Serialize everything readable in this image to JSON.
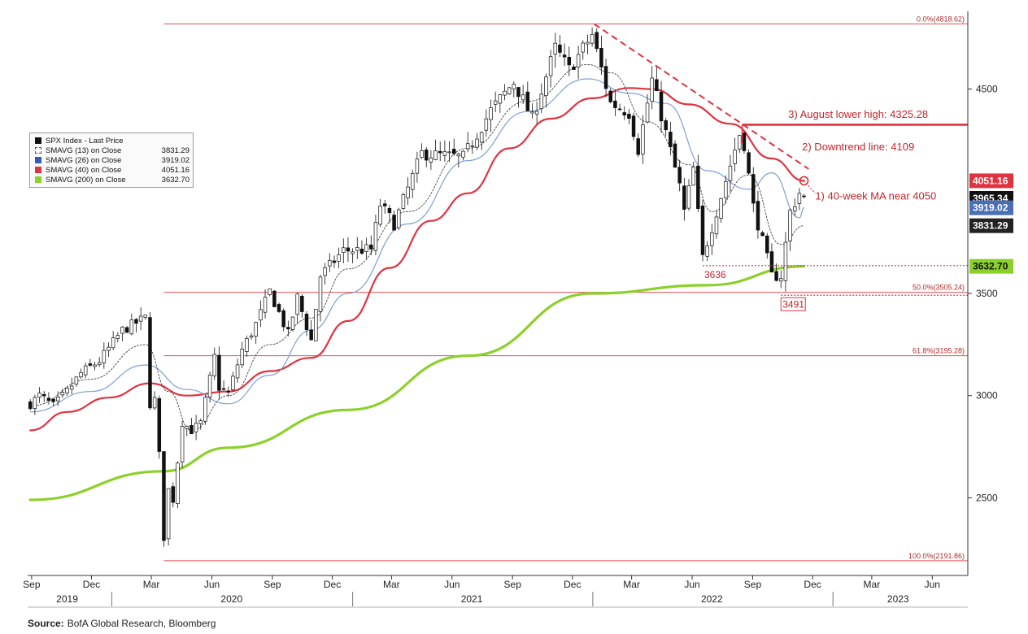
{
  "chart_data": {
    "type": "candlestick_line",
    "y_scale": "linear",
    "ylim": [
      2120,
      4880
    ],
    "y_ticks": [
      2500,
      3000,
      3500,
      4500
    ],
    "x_range": [
      "2019-08-26",
      "2023-07-25"
    ],
    "x_month_ticks": [
      {
        "label": "Sep",
        "date": "2019-09-01"
      },
      {
        "label": "Dec",
        "date": "2019-12-01"
      },
      {
        "label": "Mar",
        "date": "2020-03-01"
      },
      {
        "label": "Jun",
        "date": "2020-06-01"
      },
      {
        "label": "Sep",
        "date": "2020-09-01"
      },
      {
        "label": "Dec",
        "date": "2020-12-01"
      },
      {
        "label": "Mar",
        "date": "2021-03-01"
      },
      {
        "label": "Jun",
        "date": "2021-06-01"
      },
      {
        "label": "Sep",
        "date": "2021-09-01"
      },
      {
        "label": "Dec",
        "date": "2021-12-01"
      },
      {
        "label": "Mar",
        "date": "2022-03-01"
      },
      {
        "label": "Jun",
        "date": "2022-06-01"
      },
      {
        "label": "Sep",
        "date": "2022-09-01"
      },
      {
        "label": "Dec",
        "date": "2022-12-01"
      },
      {
        "label": "Mar",
        "date": "2023-03-01"
      },
      {
        "label": "Jun",
        "date": "2023-06-01"
      }
    ],
    "x_year_labels": [
      {
        "label": "2019",
        "date": "2019-10-25"
      },
      {
        "label": "2020",
        "date": "2020-07-01"
      },
      {
        "label": "2021",
        "date": "2021-07-01"
      },
      {
        "label": "2022",
        "date": "2022-07-01"
      },
      {
        "label": "2023",
        "date": "2023-04-10"
      }
    ],
    "year_dividers": [
      "2020-01-01",
      "2021-01-01",
      "2022-01-01",
      "2023-01-01"
    ],
    "legend": [
      {
        "label": "SPX Index - Last Price",
        "value": "",
        "color": "#111111",
        "style": "solid"
      },
      {
        "label": "SMAVG (13) on Close",
        "value": "3831.29",
        "color": "#ffffff",
        "style": "dashed"
      },
      {
        "label": "SMAVG (26) on Close",
        "value": "3919.02",
        "color": "#2f5db3",
        "style": "solid"
      },
      {
        "label": "SMAVG (40) on Close",
        "value": "4051.16",
        "color": "#e03340",
        "style": "solid"
      },
      {
        "label": "SMAVG (200) on Close",
        "value": "3632.70",
        "color": "#8cd02a",
        "style": "solid"
      }
    ],
    "last_value_boxes": [
      {
        "value": "4051.16",
        "y": 4051.16,
        "bg": "#e03340",
        "fg": "#ffffff"
      },
      {
        "value": "3965.34",
        "y": 3965.34,
        "bg": "#111111",
        "fg": "#ffffff"
      },
      {
        "value": "3919.02",
        "y": 3919.02,
        "bg": "#4a6fb5",
        "fg": "#ffffff"
      },
      {
        "value": "3831.29",
        "y": 3831.29,
        "bg": "#222222",
        "fg": "#ffffff"
      },
      {
        "value": "3632.70",
        "y": 3632.7,
        "bg": "#8cd02a",
        "fg": "#111111"
      }
    ],
    "fib_levels": [
      {
        "label": "0.0%(4818.62)",
        "y": 4818.62,
        "from": "2020-03-20"
      },
      {
        "label": "50.0%(3505.24)",
        "y": 3505.24,
        "from": "2020-03-20"
      },
      {
        "label": "61.8%(3195.28)",
        "y": 3195.28,
        "from": "2020-03-20"
      },
      {
        "label": "100.0%(2191.86)",
        "y": 2191.86,
        "from": "2020-03-20"
      }
    ],
    "annotations": [
      {
        "text": "3) August lower high: 4325.28",
        "date": "2022-10-25",
        "y": 4360
      },
      {
        "text": "2) Downtrend line: 4109",
        "date": "2022-11-15",
        "y": 4200
      },
      {
        "text": "1) 40-week MA near 4050",
        "date": "2022-12-05",
        "y": 3960
      }
    ],
    "lows": [
      {
        "label": "3636",
        "y": 3636,
        "date": "2022-06-17"
      },
      {
        "label": "3491",
        "y": 3491,
        "date": "2022-10-14"
      }
    ],
    "downtrend_line": [
      [
        "2022-01-03",
        4818.62
      ],
      [
        "2022-11-25",
        4109
      ]
    ],
    "august_high_line": [
      [
        "2022-08-16",
        4325.28
      ],
      [
        "2023-07-25",
        4325.28
      ]
    ],
    "support_line_3636": [
      [
        "2022-06-17",
        3636
      ],
      [
        "2023-07-25",
        3636
      ]
    ],
    "support_line_3491": [
      [
        "2022-10-14",
        3491
      ],
      [
        "2023-07-25",
        3491
      ]
    ],
    "price_anchors": [
      [
        "2019-08-30",
        2960
      ],
      [
        "2019-09-13",
        3000
      ],
      [
        "2019-10-04",
        2950
      ],
      [
        "2019-10-25",
        3020
      ],
      [
        "2019-11-15",
        3110
      ],
      [
        "2019-12-13",
        3170
      ],
      [
        "2020-01-17",
        3320
      ],
      [
        "2020-02-21",
        3380
      ],
      [
        "2020-02-28",
        2960
      ],
      [
        "2020-03-06",
        2980
      ],
      [
        "2020-03-13",
        2710
      ],
      [
        "2020-03-20",
        2305
      ],
      [
        "2020-03-27",
        2540
      ],
      [
        "2020-04-03",
        2490
      ],
      [
        "2020-04-17",
        2870
      ],
      [
        "2020-05-01",
        2830
      ],
      [
        "2020-05-15",
        2865
      ],
      [
        "2020-06-05",
        3190
      ],
      [
        "2020-06-12",
        3040
      ],
      [
        "2020-06-26",
        3010
      ],
      [
        "2020-07-17",
        3225
      ],
      [
        "2020-08-07",
        3350
      ],
      [
        "2020-08-28",
        3510
      ],
      [
        "2020-09-25",
        3300
      ],
      [
        "2020-10-09",
        3480
      ],
      [
        "2020-10-30",
        3270
      ],
      [
        "2020-11-13",
        3585
      ],
      [
        "2020-12-18",
        3710
      ],
      [
        "2021-01-29",
        3715
      ],
      [
        "2021-02-12",
        3935
      ],
      [
        "2021-03-05",
        3840
      ],
      [
        "2021-04-16",
        4185
      ],
      [
        "2021-05-14",
        4175
      ],
      [
        "2021-06-18",
        4165
      ],
      [
        "2021-07-30",
        4395
      ],
      [
        "2021-09-03",
        4535
      ],
      [
        "2021-10-01",
        4355
      ],
      [
        "2021-11-05",
        4700
      ],
      [
        "2021-11-26",
        4595
      ],
      [
        "2021-12-31",
        4766
      ],
      [
        "2022-01-28",
        4432
      ],
      [
        "2022-02-25",
        4385
      ],
      [
        "2022-03-11",
        4205
      ],
      [
        "2022-04-01",
        4545
      ],
      [
        "2022-05-13",
        4025
      ],
      [
        "2022-05-20",
        3900
      ],
      [
        "2022-06-03",
        4110
      ],
      [
        "2022-06-17",
        3675
      ],
      [
        "2022-07-08",
        3900
      ],
      [
        "2022-08-12",
        4280
      ],
      [
        "2022-08-19",
        4230
      ],
      [
        "2022-09-02",
        3925
      ],
      [
        "2022-09-30",
        3585
      ],
      [
        "2022-10-14",
        3585
      ],
      [
        "2022-10-28",
        3900
      ],
      [
        "2022-11-11",
        3992
      ],
      [
        "2022-11-18",
        3965.34
      ]
    ],
    "sma200_anchors": [
      [
        "2019-08-30",
        2490
      ],
      [
        "2020-03-20",
        2630
      ],
      [
        "2020-06-26",
        2745
      ],
      [
        "2020-12-25",
        2930
      ],
      [
        "2021-06-25",
        3195
      ],
      [
        "2021-12-31",
        3500
      ],
      [
        "2022-06-24",
        3540
      ],
      [
        "2022-11-18",
        3632.7
      ]
    ],
    "sma40_anchors": [
      [
        "2019-08-30",
        2830
      ],
      [
        "2019-10-25",
        2920
      ],
      [
        "2019-12-27",
        2990
      ],
      [
        "2020-02-28",
        3060
      ],
      [
        "2020-04-24",
        3000
      ],
      [
        "2020-06-26",
        3020
      ],
      [
        "2020-08-28",
        3120
      ],
      [
        "2020-10-30",
        3185
      ],
      [
        "2020-12-25",
        3365
      ],
      [
        "2021-02-26",
        3625
      ],
      [
        "2021-04-30",
        3855
      ],
      [
        "2021-06-25",
        3990
      ],
      [
        "2021-08-27",
        4210
      ],
      [
        "2021-10-29",
        4355
      ],
      [
        "2021-12-31",
        4455
      ],
      [
        "2022-02-25",
        4505
      ],
      [
        "2022-04-01",
        4500
      ],
      [
        "2022-05-27",
        4425
      ],
      [
        "2022-07-29",
        4330
      ],
      [
        "2022-09-30",
        4160
      ],
      [
        "2022-11-18",
        4051.16
      ]
    ],
    "sma26_anchors": [
      [
        "2019-08-30",
        2920
      ],
      [
        "2019-11-29",
        3020
      ],
      [
        "2020-02-21",
        3150
      ],
      [
        "2020-04-24",
        3030
      ],
      [
        "2020-06-26",
        2960
      ],
      [
        "2020-08-28",
        3100
      ],
      [
        "2020-10-30",
        3320
      ],
      [
        "2020-12-25",
        3500
      ],
      [
        "2021-03-26",
        3840
      ],
      [
        "2021-06-25",
        4150
      ],
      [
        "2021-09-24",
        4390
      ],
      [
        "2021-12-24",
        4550
      ],
      [
        "2022-02-25",
        4480
      ],
      [
        "2022-04-22",
        4430
      ],
      [
        "2022-06-24",
        4100
      ],
      [
        "2022-08-26",
        4010
      ],
      [
        "2022-09-30",
        4090
      ],
      [
        "2022-11-11",
        3870
      ],
      [
        "2022-11-18",
        3919.02
      ]
    ],
    "sma13_anchors": [
      [
        "2019-08-30",
        2950
      ],
      [
        "2019-11-29",
        3080
      ],
      [
        "2020-02-21",
        3250
      ],
      [
        "2020-03-27",
        3020
      ],
      [
        "2020-05-01",
        2830
      ],
      [
        "2020-06-26",
        3000
      ],
      [
        "2020-08-28",
        3250
      ],
      [
        "2020-10-30",
        3380
      ],
      [
        "2020-12-25",
        3620
      ],
      [
        "2021-03-26",
        3900
      ],
      [
        "2021-06-25",
        4210
      ],
      [
        "2021-09-24",
        4440
      ],
      [
        "2021-12-24",
        4620
      ],
      [
        "2022-01-28",
        4580
      ],
      [
        "2022-03-25",
        4340
      ],
      [
        "2022-05-27",
        4130
      ],
      [
        "2022-07-01",
        3900
      ],
      [
        "2022-08-26",
        4080
      ],
      [
        "2022-10-14",
        3740
      ],
      [
        "2022-11-18",
        3831.29
      ]
    ]
  },
  "footer": {
    "source_label": "Source:",
    "source_text": "BofA Global Research, Bloomberg"
  }
}
